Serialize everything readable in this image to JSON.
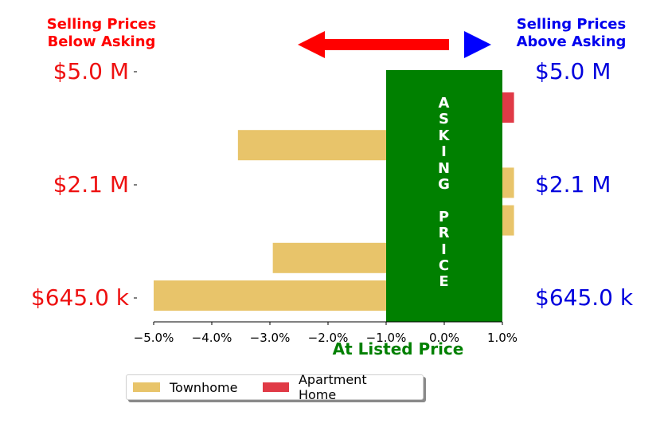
{
  "header": {
    "left_line1": "Selling Prices",
    "left_line2": "Below Asking",
    "right_line1": "Selling Prices",
    "right_line2": "Above Asking",
    "left_color": "#ff0000",
    "right_color": "#0000ee"
  },
  "arrows": {
    "left_color": "#ff0000",
    "right_color": "#0000ff"
  },
  "asking_band": {
    "letters": [
      "A",
      "S",
      "K",
      "I",
      "N",
      "G",
      "",
      "P",
      "R",
      "I",
      "C",
      "E"
    ],
    "color": "#008000",
    "x_range": [
      -1.0,
      1.0
    ]
  },
  "price_labels": {
    "left": [
      "$5.0 M",
      "$2.1 M",
      "$645.0 k"
    ],
    "right": [
      "$5.0 M",
      "$2.1 M",
      "$645.0 k"
    ],
    "left_color": "#ee1111",
    "right_color": "#0000dd"
  },
  "axis_title": {
    "text": "At Listed Price",
    "color": "#008000"
  },
  "chart_data": {
    "type": "bar",
    "orientation": "horizontal",
    "xlabel": "At Listed Price",
    "xlim": [
      -5.25,
      1.0
    ],
    "x_ticks": [
      -5.0,
      -4.0,
      -3.0,
      -2.0,
      -1.0,
      0.0,
      1.0
    ],
    "x_tick_labels": [
      "−5.0%",
      "−4.0%",
      "−3.0%",
      "−2.0%",
      "−1.0%",
      "0.0%",
      "1.0%"
    ],
    "y_ticks_left": [
      "$5.0 M",
      "$2.1 M",
      "$645.0 k"
    ],
    "y_ticks_right": [
      "$5.0 M",
      "$2.1 M",
      "$645.0 k"
    ],
    "bars": [
      {
        "series": "Apartment Home",
        "value": 1.2
      },
      {
        "series": "Townhome",
        "value": -3.55
      },
      {
        "series": "Townhome",
        "value": 1.2
      },
      {
        "series": "Townhome",
        "value": 1.2
      },
      {
        "series": "Townhome",
        "value": -2.95
      },
      {
        "series": "Townhome",
        "value": -5.0
      }
    ],
    "series": [
      {
        "name": "Townhome",
        "color": "#e8c46a"
      },
      {
        "name": "Apartment Home",
        "color": "#e03a46"
      }
    ],
    "legend": "bottom-center"
  },
  "legend": {
    "items": [
      "Townhome",
      "Apartment Home"
    ]
  }
}
